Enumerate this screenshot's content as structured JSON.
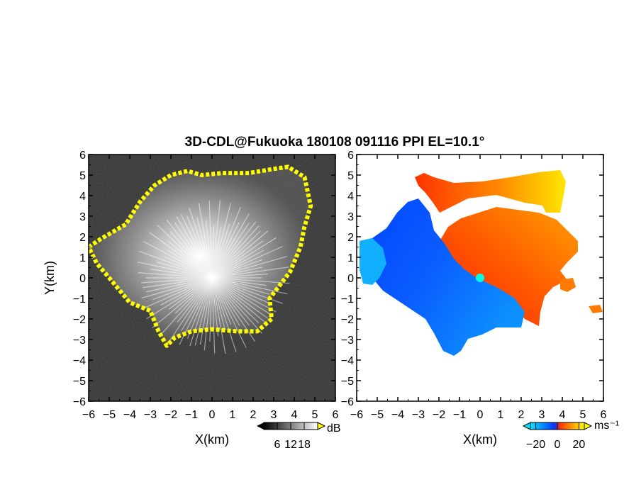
{
  "title": "3D-CDL@Fukuoka 180108 091116 PPI EL=10.1°",
  "chart_data": [
    {
      "type": "heatmap",
      "name": "",
      "xlabel": "X(km)",
      "ylabel": "Y(km)",
      "xlim": [
        -6,
        6
      ],
      "ylim": [
        -6,
        6
      ],
      "xticks": [
        -6,
        -5,
        -4,
        -3,
        -2,
        -1,
        0,
        1,
        2,
        3,
        4,
        5,
        6
      ],
      "yticks": [
        -6,
        -5,
        -4,
        -3,
        -2,
        -1,
        0,
        1,
        2,
        3,
        4,
        5,
        6
      ],
      "colorbar": {
        "unit": "dB",
        "ticks": [
          6,
          12,
          18
        ],
        "range": [
          0,
          24
        ],
        "colors": [
          "#000000",
          "#ffffff"
        ],
        "over_color": "#ffff00"
      },
      "background_color": "#2a2a2a",
      "echo_outline_km": [
        [
          -6,
          1.5
        ],
        [
          -5.4,
          1.9
        ],
        [
          -4.2,
          2.6
        ],
        [
          -3.5,
          3.7
        ],
        [
          -2.8,
          4.5
        ],
        [
          -2.0,
          5.0
        ],
        [
          -1.2,
          5.2
        ],
        [
          -0.5,
          5.0
        ],
        [
          0.5,
          5.1
        ],
        [
          1.8,
          5.1
        ],
        [
          3.0,
          5.3
        ],
        [
          3.7,
          5.4
        ],
        [
          4.5,
          4.9
        ],
        [
          4.8,
          3.5
        ],
        [
          4.5,
          2.5
        ],
        [
          4.3,
          1.5
        ],
        [
          3.8,
          0.3
        ],
        [
          2.8,
          -1.0
        ],
        [
          2.9,
          -2.0
        ],
        [
          2.2,
          -2.6
        ],
        [
          1.2,
          -2.6
        ],
        [
          0.0,
          -2.5
        ],
        [
          -1.0,
          -2.6
        ],
        [
          -1.8,
          -2.9
        ],
        [
          -2.2,
          -3.3
        ],
        [
          -2.6,
          -2.6
        ],
        [
          -3.0,
          -1.6
        ],
        [
          -4.0,
          -1.2
        ],
        [
          -5.0,
          0.0
        ],
        [
          -5.6,
          0.7
        ]
      ]
    },
    {
      "type": "heatmap",
      "name": "",
      "xlabel": "X(km)",
      "ylabel": "",
      "xlim": [
        -6,
        6
      ],
      "ylim": [
        -6,
        6
      ],
      "xticks": [
        -6,
        -5,
        -4,
        -3,
        -2,
        -1,
        0,
        1,
        2,
        3,
        4,
        5,
        6
      ],
      "yticks": [
        -6,
        -5,
        -4,
        -3,
        -2,
        -1,
        0,
        1,
        2,
        3,
        4,
        5,
        6
      ],
      "colorbar": {
        "unit": "ms⁻¹",
        "ticks": [
          -20,
          0,
          20
        ],
        "range": [
          -25,
          25
        ],
        "colors": [
          "#00e5ff",
          "#0033ff",
          "#ff3300",
          "#ffff00"
        ]
      },
      "radar_site_km": [
        0,
        0
      ],
      "site_marker_color": "#00ffe0"
    }
  ]
}
